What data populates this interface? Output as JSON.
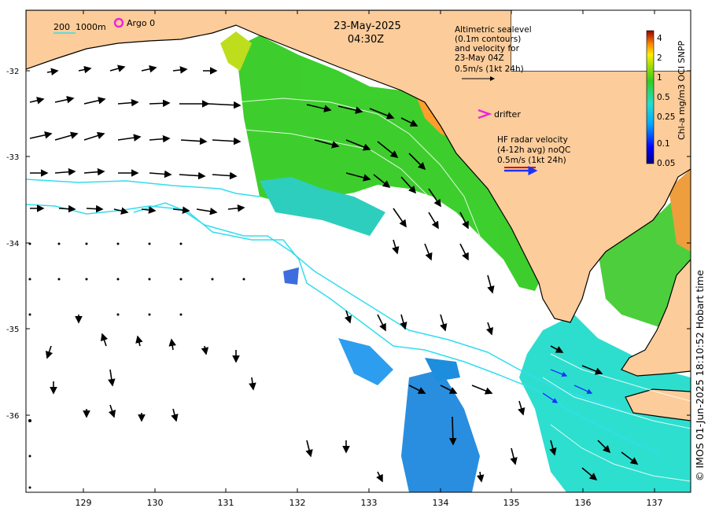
{
  "map": {
    "date": "23-May-2025",
    "time": "04:30Z",
    "lon_ticks": [
      "129",
      "130",
      "131",
      "132",
      "133",
      "134",
      "135",
      "136",
      "137"
    ],
    "lat_ticks": [
      "-32",
      "-33",
      "-34",
      "-35",
      "-36"
    ],
    "lon_range": [
      128.2,
      137.5
    ],
    "lat_range": [
      -36.9,
      -31.4
    ],
    "land_color": "#fccc9a"
  },
  "legend": {
    "bathy_label": "200  1000m",
    "bathy_color": "#33ddee",
    "argo_label": "Argo 0",
    "argo_color": "#ee22dd",
    "altimetry_lines": [
      "Altimetric sealevel",
      "(0.1m contours)",
      "and velocity for",
      "23-May 04Z",
      "0.5m/s (1kt 24h)"
    ],
    "drifter_label": "drifter",
    "drifter_color": "#ee22dd",
    "radar_lines": [
      "HF radar velocity",
      "(4-12h avg) noQC",
      "0.5m/s (1kt 24h)"
    ]
  },
  "colorbar": {
    "label": "Chl-a mg/m3 OCI SNPP",
    "ticks": [
      "4",
      "2",
      "1",
      "0.5",
      "0.25",
      "0.1",
      "0.05"
    ],
    "tick_values": [
      4,
      2,
      1,
      0.5,
      0.25,
      0.1,
      0.05
    ],
    "range": [
      0.05,
      5
    ],
    "scale": "log",
    "colormap": "jet"
  },
  "credit": "© IMOS 01-Jun-2025 18:10:52 Hobart time"
}
